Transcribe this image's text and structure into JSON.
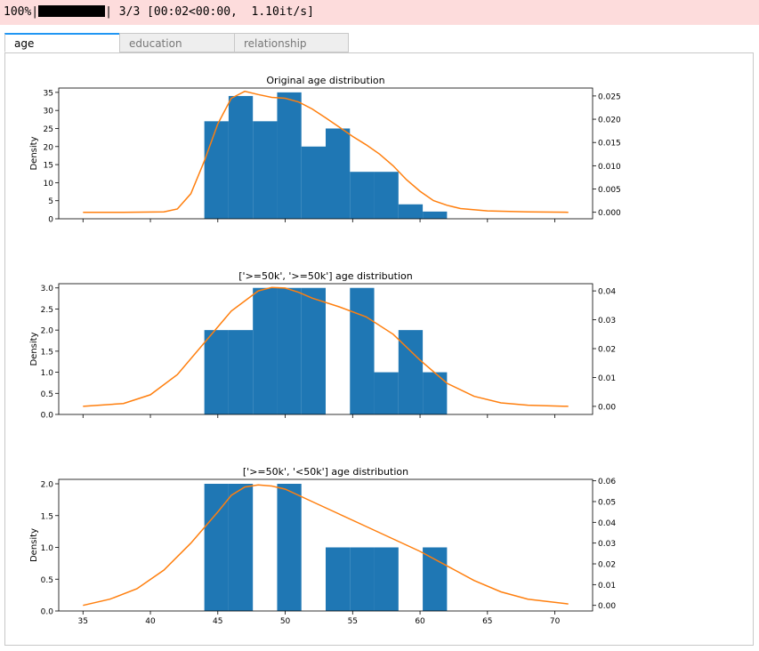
{
  "progress": {
    "percent_text": "100%|",
    "fraction": 1.0,
    "stats_text": "| 3/3 [00:02<00:00,  1.10it/s]"
  },
  "tabs": [
    {
      "label": "age",
      "active": true
    },
    {
      "label": "education",
      "active": false
    },
    {
      "label": "relationship",
      "active": false
    }
  ],
  "colors": {
    "bar": "#1f77b4",
    "kde": "#ff7f0e",
    "progress_bg": "#fddcdc",
    "tab_accent": "#2196f3"
  },
  "chart_data": [
    {
      "type": "bar",
      "title": "Original age distribution",
      "ylabel": "Density",
      "xlim": [
        33.2,
        72.8
      ],
      "ylim": [
        0,
        36.2
      ],
      "y2lim": [
        -0.0014,
        0.0267
      ],
      "yticks": [
        0,
        5,
        10,
        15,
        20,
        25,
        30,
        35
      ],
      "y2ticks": [
        0.0,
        0.005,
        0.01,
        0.015,
        0.02,
        0.025
      ],
      "y2tick_labels": [
        "0.000",
        "0.005",
        "0.010",
        "0.015",
        "0.020",
        "0.025"
      ],
      "xticks": [
        35,
        40,
        45,
        50,
        55,
        60,
        65,
        70
      ],
      "show_xtick_labels": false,
      "bins": [
        44,
        45.8,
        47.6,
        49.4,
        51.2,
        53,
        54.8,
        56.6,
        58.4,
        60.2,
        62
      ],
      "counts": [
        27,
        34,
        27,
        35,
        20,
        25,
        13,
        13,
        4,
        2
      ],
      "kde": {
        "x": [
          35,
          38,
          41,
          42,
          43,
          44,
          45,
          46,
          47,
          48,
          49,
          50,
          51,
          52,
          53,
          54,
          55,
          56,
          57,
          58,
          59,
          60,
          61,
          62,
          63,
          65,
          68,
          71
        ],
        "y": [
          0.0,
          0.0,
          0.0001,
          0.0007,
          0.004,
          0.011,
          0.019,
          0.0245,
          0.026,
          0.0253,
          0.0247,
          0.0245,
          0.0237,
          0.0222,
          0.0203,
          0.0183,
          0.0163,
          0.0145,
          0.0125,
          0.01,
          0.007,
          0.0045,
          0.0025,
          0.0015,
          0.0008,
          0.0003,
          0.0001,
          0.0
        ]
      }
    },
    {
      "type": "bar",
      "title": "['>=50k', '>=50k'] age distribution",
      "ylabel": "Density",
      "xlim": [
        33.2,
        72.8
      ],
      "ylim": [
        0,
        3.1
      ],
      "y2lim": [
        -0.0028,
        0.0425
      ],
      "yticks": [
        0,
        0.5,
        1.0,
        1.5,
        2.0,
        2.5,
        3.0
      ],
      "ytick_labels": [
        "0.0",
        "0.5",
        "1.0",
        "1.5",
        "2.0",
        "2.5",
        "3.0"
      ],
      "y2ticks": [
        0.0,
        0.01,
        0.02,
        0.03,
        0.04
      ],
      "y2tick_labels": [
        "0.00",
        "0.01",
        "0.02",
        "0.03",
        "0.04"
      ],
      "xticks": [
        35,
        40,
        45,
        50,
        55,
        60,
        65,
        70
      ],
      "show_xtick_labels": false,
      "bins": [
        44,
        45.8,
        47.6,
        49.4,
        51.2,
        53,
        54.8,
        56.6,
        58.4,
        60.2,
        62
      ],
      "counts": [
        2,
        2,
        3,
        3,
        3,
        0,
        3,
        1,
        2,
        1
      ],
      "kde": {
        "x": [
          35,
          38,
          40,
          42,
          44,
          46,
          48,
          49,
          50,
          51,
          52,
          54,
          56,
          58,
          60,
          62,
          64,
          66,
          68,
          71
        ],
        "y": [
          0.0,
          0.001,
          0.004,
          0.011,
          0.022,
          0.033,
          0.04,
          0.0412,
          0.041,
          0.0395,
          0.0375,
          0.0345,
          0.031,
          0.025,
          0.016,
          0.008,
          0.0035,
          0.0012,
          0.0004,
          0.0
        ]
      }
    },
    {
      "type": "bar",
      "title": "['>=50k', '<50k'] age distribution",
      "ylabel": "Density",
      "xlim": [
        33.2,
        72.8
      ],
      "ylim": [
        0,
        2.07
      ],
      "y2lim": [
        -0.0027,
        0.0607
      ],
      "yticks": [
        0,
        0.5,
        1.0,
        1.5,
        2.0
      ],
      "ytick_labels": [
        "0.0",
        "0.5",
        "1.0",
        "1.5",
        "2.0"
      ],
      "y2ticks": [
        0.0,
        0.01,
        0.02,
        0.03,
        0.04,
        0.05,
        0.06
      ],
      "y2tick_labels": [
        "0.00",
        "0.01",
        "0.02",
        "0.03",
        "0.04",
        "0.05",
        "0.06"
      ],
      "xticks": [
        35,
        40,
        45,
        50,
        55,
        60,
        65,
        70
      ],
      "xtick_labels": [
        "35",
        "40",
        "45",
        "50",
        "55",
        "60",
        "65",
        "70"
      ],
      "show_xtick_labels": true,
      "bins": [
        44,
        45.8,
        47.6,
        49.4,
        51.2,
        53,
        54.8,
        56.6,
        58.4,
        60.2,
        62
      ],
      "counts": [
        2,
        2,
        0,
        2,
        0,
        1,
        1,
        1,
        0,
        1
      ],
      "kde": {
        "x": [
          35,
          37,
          39,
          41,
          43,
          45,
          46,
          47,
          48,
          49,
          50,
          52,
          54,
          56,
          58,
          60,
          62,
          64,
          66,
          68,
          71
        ],
        "y": [
          0.0,
          0.003,
          0.008,
          0.017,
          0.03,
          0.045,
          0.053,
          0.057,
          0.058,
          0.0575,
          0.056,
          0.05,
          0.044,
          0.038,
          0.032,
          0.026,
          0.019,
          0.012,
          0.0065,
          0.003,
          0.0007
        ]
      }
    }
  ]
}
